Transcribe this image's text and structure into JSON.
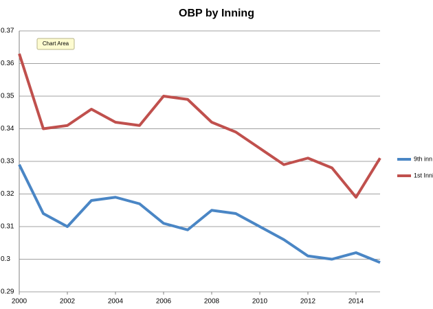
{
  "chart_data": {
    "type": "line",
    "title": "OBP by Inning",
    "annotation": "Chart Area",
    "x": [
      2000,
      2001,
      2002,
      2003,
      2004,
      2005,
      2006,
      2007,
      2008,
      2009,
      2010,
      2011,
      2012,
      2013,
      2014,
      2015
    ],
    "series": [
      {
        "name": "9th inn",
        "color": "#4a86c5",
        "values": [
          0.329,
          0.314,
          0.31,
          0.318,
          0.319,
          0.317,
          0.311,
          0.309,
          0.315,
          0.314,
          0.31,
          0.306,
          0.301,
          0.3,
          0.302,
          0.299
        ]
      },
      {
        "name": "1st Inni",
        "color": "#c0504d",
        "values": [
          0.363,
          0.34,
          0.341,
          0.346,
          0.342,
          0.341,
          0.35,
          0.349,
          0.342,
          0.339,
          0.334,
          0.329,
          0.331,
          0.328,
          0.319,
          0.331
        ]
      }
    ],
    "xlim": [
      2000,
      2015
    ],
    "xticks": [
      2000,
      2002,
      2004,
      2006,
      2008,
      2010,
      2012,
      2014
    ],
    "ylim": [
      0.29,
      0.37
    ],
    "yticks": [
      0.29,
      0.3,
      0.31,
      0.32,
      0.33,
      0.34,
      0.35,
      0.36,
      0.37
    ],
    "grid": true,
    "legend": "right"
  }
}
